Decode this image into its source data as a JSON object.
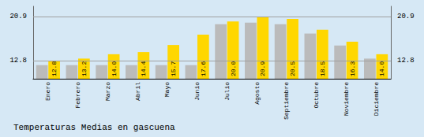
{
  "chart_data": {
    "type": "bar",
    "title": "Temperaturas Medias en gascuena",
    "categories": [
      "Enero",
      "Febrero",
      "Marzo",
      "Abril",
      "Mayo",
      "Junio",
      "Julio",
      "Agosto",
      "Septiembre",
      "Octubre",
      "Noviembre",
      "Diciembre"
    ],
    "series": [
      {
        "color": "#BBBBBB",
        "values": [
          12.0,
          12.0,
          12.0,
          12.0,
          12.0,
          12.0,
          19.5,
          19.8,
          19.5,
          17.8,
          15.6,
          13.2
        ]
      },
      {
        "color": "#FFD700",
        "values": [
          12.8,
          13.2,
          14.0,
          14.4,
          15.7,
          17.6,
          20.0,
          20.9,
          20.5,
          18.5,
          16.3,
          14.0
        ],
        "data_labels": true,
        "value_labels": [
          "12.8",
          "13.2",
          "14.0",
          "14.4",
          "15.7",
          "17.6",
          "20.0",
          "20.9",
          "20.5",
          "18.5",
          "16.3",
          "14.0"
        ]
      }
    ],
    "ylim": [
      9.5,
      22.8
    ],
    "yticks": [
      12.8,
      20.9
    ],
    "y2lim": [
      9.5,
      22.8
    ],
    "y2ticks": [
      12.8,
      20.9
    ],
    "grid": true
  }
}
